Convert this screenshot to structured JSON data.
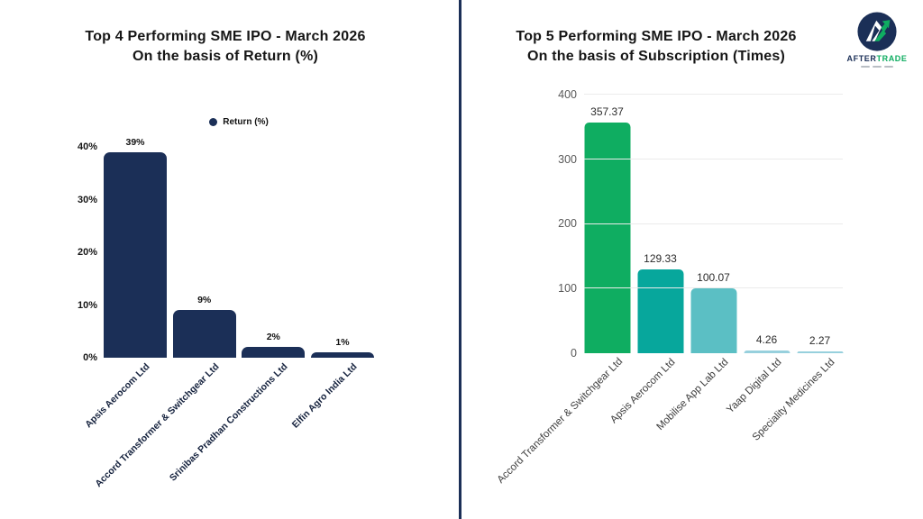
{
  "logo": {
    "name": "AFTERTRADE",
    "name_part1": "AFTER",
    "name_part2": "TRADE",
    "part1_color": "#1B2F57",
    "part2_color": "#0FAD61"
  },
  "colors": {
    "navy": "#1B2F57",
    "green": "#0FAD61",
    "teal": "#07A79C",
    "light_teal": "#5BBFC4",
    "pale_blue": "#97D0DD",
    "gridline": "#ebebeb"
  },
  "chart_data": [
    {
      "type": "bar",
      "title": "Top 4 Performing SME IPO - March 2026",
      "subtitle": "On the basis of Return (%)",
      "legend": [
        {
          "label": "Return (%)",
          "color": "#1B2F57",
          "position": "top"
        }
      ],
      "categories": [
        "Apsis Aerocom Ltd",
        "Accord Transformer & Switchgear Ltd",
        "Srinibas Pradhan Constructions Ltd",
        "Elfin Agro India Ltd"
      ],
      "values": [
        39,
        9,
        2,
        1
      ],
      "value_labels": [
        "39%",
        "9%",
        "2%",
        "1%"
      ],
      "bar_colors": [
        "#1B2F57",
        "#1B2F57",
        "#1B2F57",
        "#1B2F57"
      ],
      "xlabel": "",
      "ylabel": "",
      "ylim": [
        0,
        40
      ],
      "yticks": [
        {
          "v": 0,
          "label": "0%"
        },
        {
          "v": 10,
          "label": "10%"
        },
        {
          "v": 20,
          "label": "20%"
        },
        {
          "v": 30,
          "label": "30%"
        },
        {
          "v": 40,
          "label": "40%"
        }
      ],
      "grid": false
    },
    {
      "type": "bar",
      "title": "Top 5 Performing SME IPO - March 2026",
      "subtitle": "On the basis of Subscription (Times)",
      "legend": [],
      "categories": [
        "Accord Transformer & Switchgear Ltd",
        "Apsis Aerocom Ltd",
        "Mobilise App Lab Ltd",
        "Yaap Digital Ltd",
        "Speciality Medicines Ltd"
      ],
      "values": [
        357.37,
        129.33,
        100.07,
        4.26,
        2.27
      ],
      "value_labels": [
        "357.37",
        "129.33",
        "100.07",
        "4.26",
        "2.27"
      ],
      "bar_colors": [
        "#0FAD61",
        "#07A79C",
        "#5BBFC4",
        "#97D0DD",
        "#97D0DD"
      ],
      "xlabel": "",
      "ylabel": "",
      "ylim": [
        0,
        400
      ],
      "yticks": [
        {
          "v": 0,
          "label": "0"
        },
        {
          "v": 100,
          "label": "100"
        },
        {
          "v": 200,
          "label": "200"
        },
        {
          "v": 300,
          "label": "300"
        },
        {
          "v": 400,
          "label": "400"
        }
      ],
      "grid": true
    }
  ]
}
